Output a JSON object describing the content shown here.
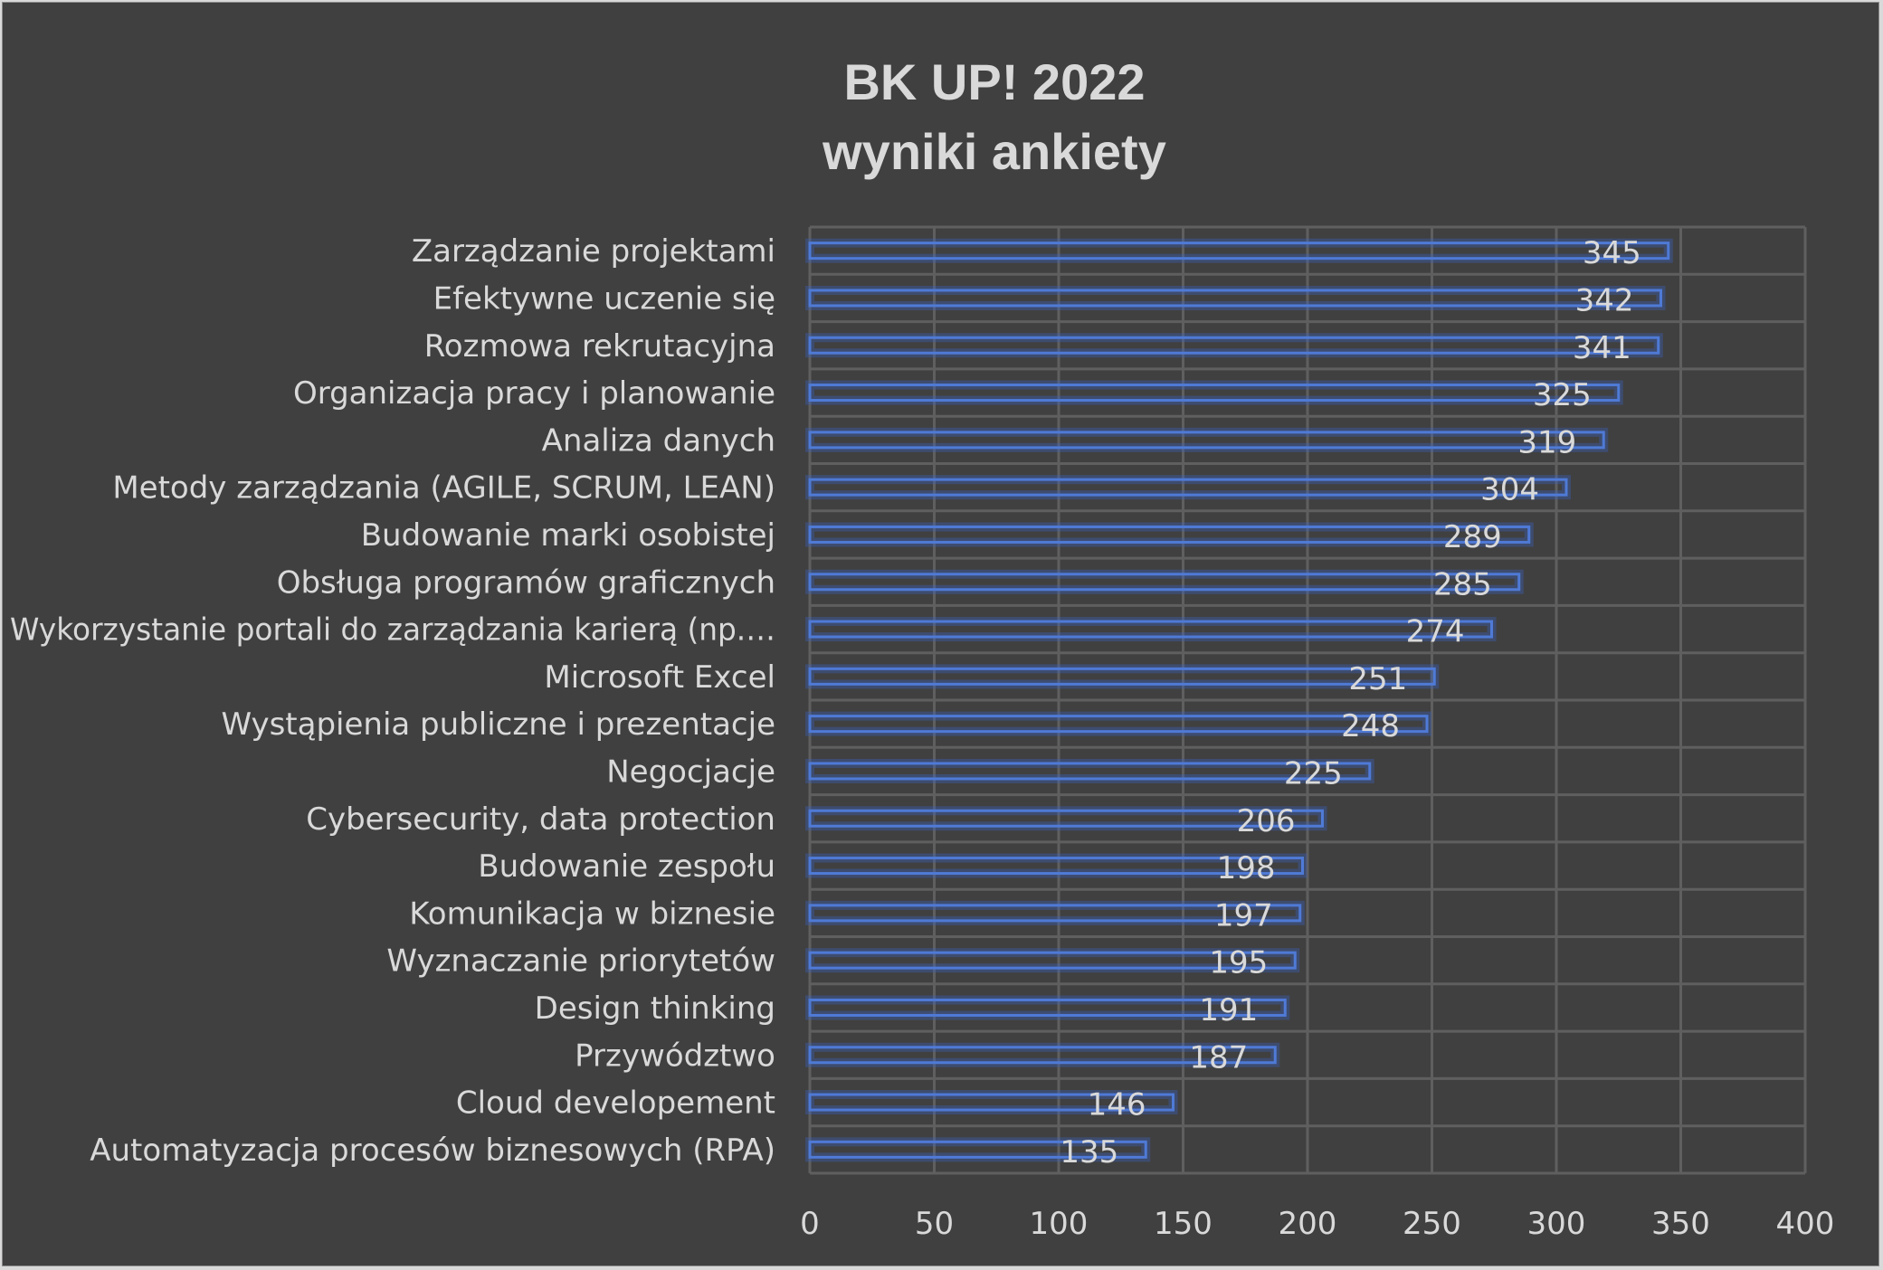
{
  "chart_data": {
    "type": "bar",
    "orientation": "horizontal",
    "title_lines": [
      "BK UP! 2022",
      "wyniki ankiety"
    ],
    "categories": [
      "Zarządzanie projektami",
      "Efektywne uczenie się",
      "Rozmowa rekrutacyjna",
      "Organizacja pracy i planowanie",
      "Analiza danych",
      "Metody zarządzania (AGILE, SCRUM, LEAN)",
      "Budowanie marki osobistej",
      "Obsługa programów graficznych",
      "Wykorzystanie portali do zarządzania karierą (np.…",
      "Microsoft Excel",
      "Wystąpienia publiczne i prezentacje",
      "Negocjacje",
      "Cybersecurity, data protection",
      "Budowanie zespołu",
      "Komunikacja w biznesie",
      "Wyznaczanie priorytetów",
      "Design thinking",
      "Przywództwo",
      "Cloud developement",
      "Automatyzacja procesów biznesowych (RPA)"
    ],
    "values": [
      345,
      342,
      341,
      325,
      319,
      304,
      289,
      285,
      274,
      251,
      248,
      225,
      206,
      198,
      197,
      195,
      191,
      187,
      146,
      135
    ],
    "xlim": [
      0,
      400
    ],
    "x_ticks": [
      "0",
      "50",
      "100",
      "150",
      "200",
      "250",
      "300",
      "350",
      "400"
    ],
    "grid": true,
    "data_labels": true,
    "colors": {
      "background": "#404040",
      "bar_outline": "#4f7ad6",
      "grid": "#5f5f5f",
      "text": "#d9d9d9"
    }
  }
}
